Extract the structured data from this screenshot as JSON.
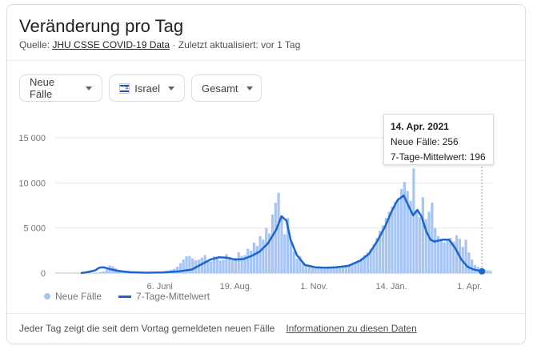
{
  "header": {
    "title": "Veränderung pro Tag",
    "source_prefix": "Quelle: ",
    "source_link": "JHU CSSE COVID-19 Data",
    "updated": " · Zuletzt aktualisiert: vor 1 Tag"
  },
  "filters": [
    {
      "label": "Neue Fälle"
    },
    {
      "label": "Israel",
      "icon": "israel-flag-icon"
    },
    {
      "label": "Gesamt"
    }
  ],
  "tooltip": {
    "date": "14. Apr. 2021",
    "line1": "Neue Fälle: 256",
    "line2": "7-Tage-Mittelwert: 196"
  },
  "legend": {
    "bars": "Neue Fälle",
    "line": "7-Tage-Mittelwert"
  },
  "footer": {
    "note": "Jeder Tag zeigt die seit dem Vortag gemeldeten neuen Fälle",
    "link": "Informationen zu diesen Daten"
  },
  "colors": {
    "bars": "#a6c4f5",
    "line": "#1a66d0",
    "grid": "#e8eaed"
  },
  "chart_data": {
    "type": "bar",
    "ylim": [
      0,
      15000
    ],
    "yticks": [
      "0",
      "5 000",
      "10 000",
      "15 000"
    ],
    "ytick_values": [
      0,
      5000,
      10000,
      15000
    ],
    "xtick_labels": [
      "6. Juni",
      "19. Aug.",
      "1. Nov.",
      "14. Jän.",
      "1. Apr."
    ],
    "xtick_positions": [
      0.222,
      0.407,
      0.597,
      0.785,
      0.975
    ],
    "series": [
      {
        "name": "Neue Fälle",
        "kind": "bars"
      },
      {
        "name": "7-Tage-Mittelwert",
        "kind": "line"
      }
    ],
    "points_note": "relative time index 0..1 across Mar 2020 – Apr 14 2021",
    "avg_points": [
      [
        0.0,
        0
      ],
      [
        0.015,
        100
      ],
      [
        0.035,
        300
      ],
      [
        0.045,
        600
      ],
      [
        0.055,
        650
      ],
      [
        0.07,
        450
      ],
      [
        0.09,
        250
      ],
      [
        0.12,
        100
      ],
      [
        0.16,
        40
      ],
      [
        0.2,
        80
      ],
      [
        0.24,
        200
      ],
      [
        0.27,
        400
      ],
      [
        0.29,
        900
      ],
      [
        0.315,
        1500
      ],
      [
        0.335,
        1750
      ],
      [
        0.355,
        1700
      ],
      [
        0.375,
        1500
      ],
      [
        0.395,
        1550
      ],
      [
        0.415,
        1900
      ],
      [
        0.435,
        2400
      ],
      [
        0.455,
        3300
      ],
      [
        0.475,
        4800
      ],
      [
        0.488,
        6300
      ],
      [
        0.5,
        5800
      ],
      [
        0.51,
        3700
      ],
      [
        0.525,
        2000
      ],
      [
        0.545,
        900
      ],
      [
        0.57,
        650
      ],
      [
        0.595,
        600
      ],
      [
        0.62,
        650
      ],
      [
        0.65,
        800
      ],
      [
        0.68,
        1400
      ],
      [
        0.7,
        2100
      ],
      [
        0.72,
        3500
      ],
      [
        0.74,
        5200
      ],
      [
        0.755,
        6800
      ],
      [
        0.77,
        8100
      ],
      [
        0.785,
        8600
      ],
      [
        0.797,
        7400
      ],
      [
        0.808,
        6400
      ],
      [
        0.818,
        7000
      ],
      [
        0.828,
        6300
      ],
      [
        0.84,
        4600
      ],
      [
        0.85,
        3700
      ],
      [
        0.86,
        3500
      ],
      [
        0.87,
        3600
      ],
      [
        0.88,
        3700
      ],
      [
        0.895,
        3700
      ],
      [
        0.91,
        2800
      ],
      [
        0.925,
        1500
      ],
      [
        0.94,
        700
      ],
      [
        0.955,
        400
      ],
      [
        0.975,
        196
      ]
    ],
    "bar_values": [
      0,
      0,
      0,
      0,
      0,
      50,
      110,
      180,
      420,
      850,
      760,
      540,
      380,
      240,
      150,
      90,
      60,
      40,
      30,
      20,
      20,
      25,
      40,
      60,
      80,
      110,
      150,
      210,
      280,
      370,
      480,
      700,
      1100,
      1500,
      1850,
      1900,
      1650,
      1400,
      1500,
      1700,
      2000,
      1400,
      1300,
      1850,
      1700,
      1400,
      1500,
      2100,
      1800,
      1400,
      1700,
      2300,
      1900,
      2000,
      2700,
      2500,
      3400,
      3000,
      4100,
      3700,
      5000,
      4400,
      6500,
      7800,
      8900,
      6400,
      4300,
      6100,
      3500,
      2400,
      1600,
      1900,
      1100,
      800,
      700,
      660,
      600,
      550,
      600,
      650,
      600,
      560,
      620,
      700,
      760,
      840,
      900,
      950,
      1000,
      1200,
      1400,
      1650,
      2000,
      2300,
      2700,
      3200,
      3900,
      4700,
      5300,
      6100,
      6800,
      7400,
      7900,
      8300,
      9300,
      10100,
      9100,
      8000,
      11600,
      7000,
      6200,
      8400,
      6000,
      6800,
      7800,
      5000,
      4100,
      3800,
      3400,
      3600,
      3900,
      3500,
      4200,
      3800,
      2900,
      3700,
      2300,
      1500,
      900,
      700,
      500,
      430,
      320,
      256
    ]
  }
}
